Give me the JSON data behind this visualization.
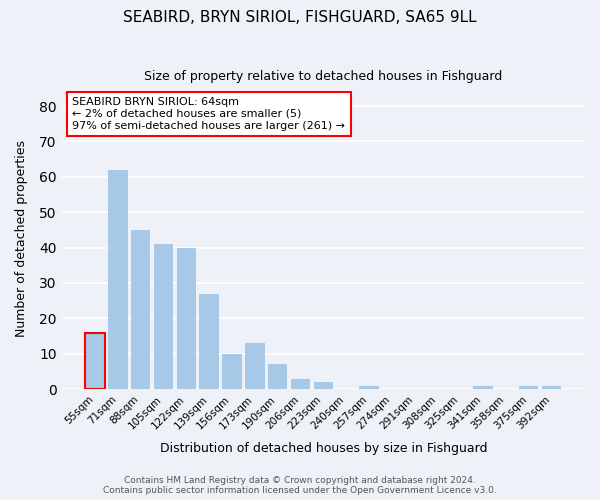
{
  "title": "SEABIRD, BRYN SIRIOL, FISHGUARD, SA65 9LL",
  "subtitle": "Size of property relative to detached houses in Fishguard",
  "xlabel": "Distribution of detached houses by size in Fishguard",
  "ylabel": "Number of detached properties",
  "bar_color": "#a8c8e8",
  "background_color": "#eef2f8",
  "categories": [
    "55sqm",
    "71sqm",
    "88sqm",
    "105sqm",
    "122sqm",
    "139sqm",
    "156sqm",
    "173sqm",
    "190sqm",
    "206sqm",
    "223sqm",
    "240sqm",
    "257sqm",
    "274sqm",
    "291sqm",
    "308sqm",
    "325sqm",
    "341sqm",
    "358sqm",
    "375sqm",
    "392sqm"
  ],
  "values": [
    16,
    62,
    45,
    41,
    40,
    27,
    10,
    13,
    7,
    3,
    2,
    0,
    1,
    0,
    0,
    0,
    0,
    1,
    0,
    1,
    1
  ],
  "highlight_index": 0,
  "ylim": [
    0,
    85
  ],
  "yticks": [
    0,
    10,
    20,
    30,
    40,
    50,
    60,
    70,
    80
  ],
  "annotation_title": "SEABIRD BRYN SIRIOL: 64sqm",
  "annotation_line1": "← 2% of detached houses are smaller (5)",
  "annotation_line2": "97% of semi-detached houses are larger (261) →",
  "footer_line1": "Contains HM Land Registry data © Crown copyright and database right 2024.",
  "footer_line2": "Contains public sector information licensed under the Open Government Licence v3.0."
}
